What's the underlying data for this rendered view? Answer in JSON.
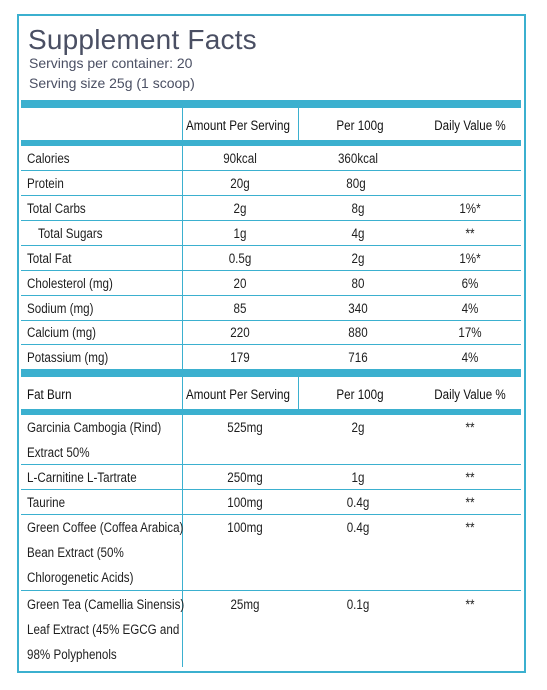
{
  "title": "Supplement Facts",
  "servings_per_container": "Servings per container: 20",
  "serving_size": "Serving size 25g (1 scoop)",
  "header1": {
    "col0": "",
    "col1": "Amount Per Serving",
    "col2": "Per 100g",
    "col3": "Daily Value %"
  },
  "nutrients": [
    {
      "name": "Calories",
      "per_serving": "90kcal",
      "per_100g": "360kcal",
      "dv": ""
    },
    {
      "name": "Protein",
      "per_serving": "20g",
      "per_100g": "80g",
      "dv": ""
    },
    {
      "name": "Total Carbs",
      "per_serving": "2g",
      "per_100g": "8g",
      "dv": "1%*"
    },
    {
      "name": "Total Sugars",
      "per_serving": "1g",
      "per_100g": "4g",
      "dv": "**"
    },
    {
      "name": "Total Fat",
      "per_serving": "0.5g",
      "per_100g": "2g",
      "dv": "1%*"
    },
    {
      "name": "Cholesterol (mg)",
      "per_serving": "20",
      "per_100g": "80",
      "dv": "6%"
    },
    {
      "name": "Sodium (mg)",
      "per_serving": "85",
      "per_100g": "340",
      "dv": "4%"
    },
    {
      "name": "Calcium (mg)",
      "per_serving": "220",
      "per_100g": "880",
      "dv": "17%"
    },
    {
      "name": "Potassium (mg)",
      "per_serving": "179",
      "per_100g": "716",
      "dv": "4%"
    }
  ],
  "header2": {
    "col0": "Fat Burn",
    "col1": "Amount Per Serving",
    "col2": "Per 100g",
    "col3": "Daily Value %"
  },
  "fat_burn": [
    {
      "name_lines": [
        "Garcinia Cambogia (Rind)",
        "Extract 50%"
      ],
      "per_serving": "525mg",
      "per_100g": "2g",
      "dv": "**"
    },
    {
      "name_lines": [
        "L-Carnitine L-Tartrate"
      ],
      "per_serving": "250mg",
      "per_100g": "1g",
      "dv": "**"
    },
    {
      "name_lines": [
        "Taurine"
      ],
      "per_serving": "100mg",
      "per_100g": "0.4g",
      "dv": "**"
    },
    {
      "name_lines": [
        "Green Coffee (Coffea Arabica)",
        "Bean Extract (50%",
        "Chlorogenetic Acids)"
      ],
      "per_serving": "100mg",
      "per_100g": "0.4g",
      "dv": "**"
    },
    {
      "name_lines": [
        "Green Tea (Camellia Sinensis)",
        "Leaf Extract (45% EGCG and",
        "98% Polyphenols"
      ],
      "per_serving": "25mg",
      "per_100g": "0.1g",
      "dv": "**"
    }
  ]
}
